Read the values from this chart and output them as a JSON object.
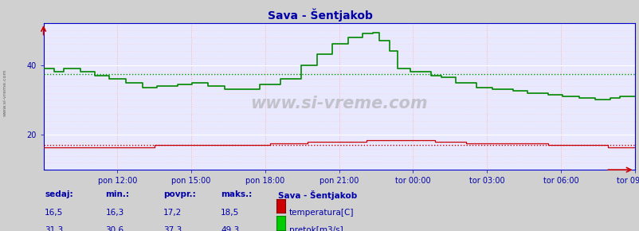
{
  "title": "Sava - Šentjakob",
  "bg_color": "#d0d0d0",
  "plot_bg_color": "#e8e8ff",
  "grid_major_color": "#ffffff",
  "grid_minor_color": "#ffcccc",
  "title_color": "#0000aa",
  "tick_color": "#0000aa",
  "spine_color": "#0000cc",
  "watermark": "www.si-vreme.com",
  "ylim": [
    10,
    52
  ],
  "yticks": [
    20,
    40
  ],
  "x_labels": [
    "pon 12:00",
    "pon 15:00",
    "pon 18:00",
    "pon 21:00",
    "tor 00:00",
    "tor 03:00",
    "tor 06:00",
    "tor 09:00"
  ],
  "temp_avg": 17.2,
  "flow_avg": 37.3,
  "legend_title": "Sava - Šentjakob",
  "legend_items": [
    "temperatura[C]",
    "pretok[m3/s]"
  ],
  "stats_headers": [
    "sedaj:",
    "min.:",
    "povpr.:",
    "maks.:"
  ],
  "stats_temp": [
    "16,5",
    "16,3",
    "17,2",
    "18,5"
  ],
  "stats_flow": [
    "31,3",
    "30,6",
    "37,3",
    "49,3"
  ],
  "temp_color": "#cc0000",
  "flow_color": "#008800",
  "avg_temp_color": "#cc0000",
  "avg_flow_color": "#009900"
}
